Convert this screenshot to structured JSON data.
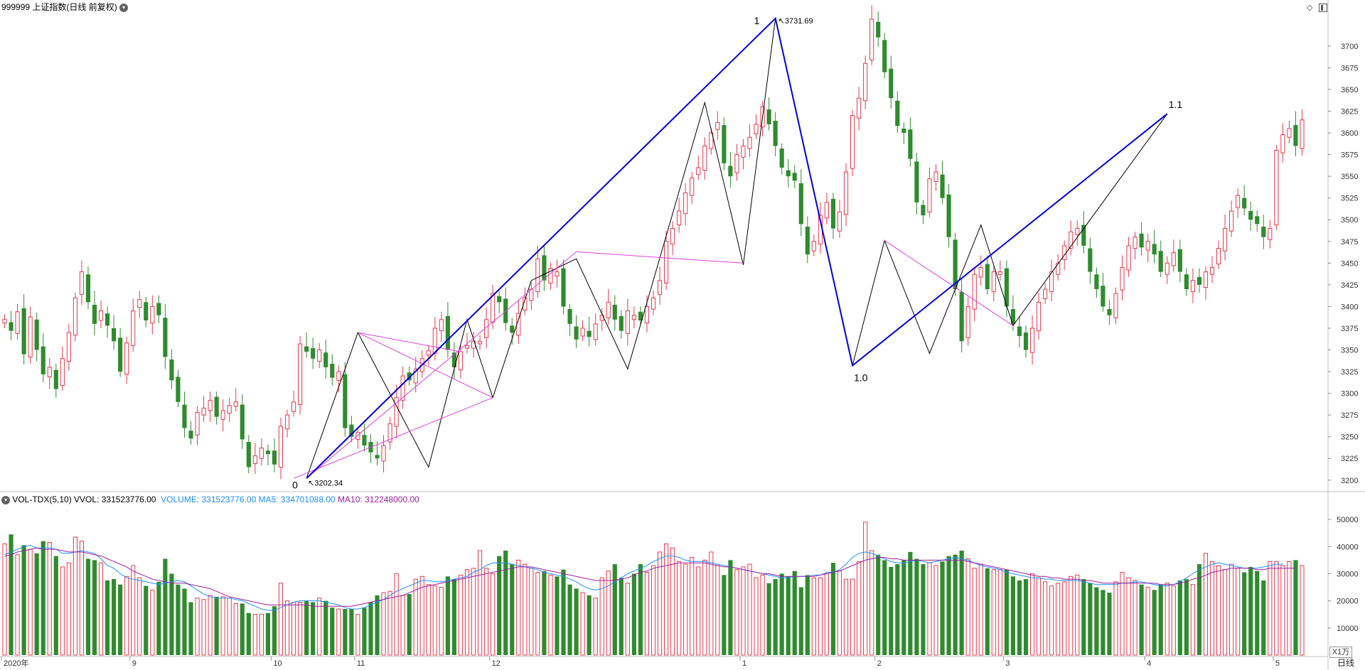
{
  "header": {
    "title": "999999 上证指数(日线 前复权)",
    "dropdown_icon": "chevron-down-icon",
    "right_icons": [
      "diamond-icon",
      "panel-toggle-icon"
    ]
  },
  "volume_header": {
    "indicator": "VOL-TDX(5,10)",
    "vvol": "VVOL: 331523776.00",
    "volume": "VOLUME: 331523776.00",
    "ma5": "MA5: 334701088.00",
    "ma10": "MA10: 312248000.00"
  },
  "price_axis": {
    "ticks": [
      "3200",
      "3225",
      "3250",
      "3275",
      "3300",
      "3325",
      "3350",
      "3375",
      "3400",
      "3425",
      "3450",
      "3475",
      "3500",
      "3525",
      "3550",
      "3575",
      "3600",
      "3625",
      "3650",
      "3675",
      "3700"
    ]
  },
  "volume_axis": {
    "ticks": [
      "10000",
      "20000",
      "30000",
      "40000",
      "50000"
    ],
    "unit": "X1万"
  },
  "time_axis": {
    "labels": [
      "2020年",
      "9",
      "10",
      "11",
      "12",
      "1",
      "2",
      "3",
      "4",
      "5"
    ],
    "period_button": "日线"
  },
  "annotations": {
    "high_label": "3731.69",
    "low_label": "3202.34",
    "wave_labels": [
      "0",
      "1",
      "1.0",
      "1.1"
    ]
  },
  "colors": {
    "up": "#e8384f",
    "down": "#2e8b2e",
    "blue_line": "#0000e0",
    "magenta_line": "#e040e0",
    "vol_ma5": "#1e90ff",
    "vol_ma10": "#a0209e",
    "grid": "#d8d8d8"
  },
  "chart_data": {
    "type": "candlestick",
    "title": "999999 上证指数(日线 前复权)",
    "ylim": [
      3190,
      3740
    ],
    "vol_ylim": [
      0,
      55000
    ],
    "closes": [
      3385,
      3372,
      3394,
      3345,
      3388,
      3350,
      3322,
      3330,
      3305,
      3340,
      3370,
      3410,
      3440,
      3405,
      3380,
      3395,
      3378,
      3360,
      3325,
      3358,
      3395,
      3408,
      3384,
      3400,
      3390,
      3342,
      3315,
      3290,
      3260,
      3248,
      3278,
      3283,
      3292,
      3273,
      3280,
      3286,
      3290,
      3247,
      3215,
      3228,
      3237,
      3230,
      3218,
      3262,
      3275,
      3290,
      3357,
      3348,
      3340,
      3350,
      3330,
      3318,
      3325,
      3260,
      3250,
      3255,
      3240,
      3232,
      3225,
      3240,
      3265,
      3295,
      3320,
      3315,
      3328,
      3340,
      3349,
      3375,
      3385,
      3350,
      3330,
      3348,
      3355,
      3360,
      3360,
      3385,
      3415,
      3405,
      3381,
      3370,
      3392,
      3410,
      3420,
      3455,
      3430,
      3444,
      3440,
      3400,
      3380,
      3362,
      3375,
      3365,
      3380,
      3390,
      3405,
      3385,
      3372,
      3395,
      3390,
      3384,
      3400,
      3410,
      3430,
      3475,
      3490,
      3510,
      3531,
      3548,
      3560,
      3585,
      3600,
      3612,
      3565,
      3550,
      3575,
      3585,
      3595,
      3610,
      3630,
      3610,
      3585,
      3560,
      3550,
      3545,
      3495,
      3460,
      3475,
      3505,
      3520,
      3490,
      3509,
      3555,
      3620,
      3640,
      3680,
      3731,
      3710,
      3670,
      3640,
      3608,
      3600,
      3570,
      3520,
      3505,
      3547,
      3555,
      3525,
      3480,
      3420,
      3360,
      3400,
      3437,
      3445,
      3420,
      3440,
      3440,
      3400,
      3380,
      3366,
      3350,
      3375,
      3405,
      3420,
      3440,
      3450,
      3470,
      3486,
      3490,
      3470,
      3440,
      3420,
      3400,
      3390,
      3415,
      3445,
      3470,
      3480,
      3468,
      3475,
      3460,
      3440,
      3450,
      3462,
      3440,
      3420,
      3430,
      3425,
      3440,
      3445,
      3467,
      3490,
      3510,
      3528,
      3513,
      3500,
      3495,
      3480,
      3490,
      3580,
      3598,
      3605,
      3585,
      3615
    ],
    "volumes": [
      41000,
      44500,
      37000,
      40500,
      39000,
      37500,
      42000,
      41500,
      36500,
      32500,
      34000,
      43500,
      42000,
      35500,
      35000,
      34000,
      27500,
      28000,
      26000,
      29000,
      33000,
      28500,
      25500,
      24000,
      27000,
      35500,
      30000,
      26000,
      24500,
      19500,
      21000,
      20500,
      22000,
      21500,
      21500,
      21000,
      19000,
      19000,
      15500,
      15000,
      15000,
      15500,
      18000,
      26500,
      20000,
      19500,
      19500,
      20000,
      19500,
      21000,
      20000,
      17500,
      17000,
      17000,
      17000,
      15000,
      17500,
      19500,
      22000,
      23000,
      23500,
      30000,
      22000,
      22500,
      28000,
      29000,
      26000,
      25500,
      25000,
      29000,
      28000,
      29500,
      31500,
      32000,
      38500,
      32000,
      30000,
      36500,
      38500,
      33500,
      35000,
      33500,
      32000,
      30500,
      31000,
      29500,
      29000,
      31500,
      26000,
      24500,
      23000,
      22000,
      21000,
      28500,
      31000,
      33500,
      28500,
      26500,
      30000,
      33500,
      30500,
      33000,
      38000,
      41000,
      39500,
      34500,
      33500,
      36000,
      32500,
      35000,
      38000,
      33000,
      29500,
      35000,
      31500,
      32500,
      33500,
      28500,
      29500,
      26500,
      28000,
      30000,
      29000,
      31000,
      25000,
      29500,
      28500,
      28500,
      30000,
      34000,
      31000,
      28000,
      28000,
      34500,
      49000,
      38500,
      37000,
      35000,
      32500,
      33500,
      35000,
      38000,
      35500,
      33500,
      34000,
      33000,
      34500,
      36500,
      37000,
      38500,
      35500,
      32000,
      33500,
      32000,
      31500,
      31500,
      31500,
      29000,
      27500,
      28000,
      30000,
      28500,
      27000,
      25500,
      26500,
      27000,
      29000,
      29500,
      28000,
      26500,
      25000,
      24000,
      23000,
      27000,
      30500,
      28500,
      27500,
      26000,
      25000,
      24000,
      26000,
      26500,
      25500,
      27500,
      28000,
      26000,
      33500,
      37500,
      34500,
      33000,
      31500,
      33500,
      32000,
      30500,
      32500,
      31000,
      27500,
      34500,
      34500,
      33000,
      34500,
      35000,
      33000
    ],
    "ma5": [
      37000,
      38000,
      39000,
      40000,
      40500,
      39500,
      39500,
      39500,
      39000,
      37500,
      37500,
      38000,
      38500,
      38000,
      37500,
      35500,
      33000,
      32000,
      30000,
      28500,
      28000,
      27500,
      27000,
      26500,
      26000,
      26500,
      27000,
      27500,
      27000,
      25500,
      24000,
      22500,
      21500,
      21000,
      21000,
      21000,
      20500,
      20000,
      19000,
      18000,
      17000,
      16500,
      16500,
      17500,
      18500,
      19500,
      20000,
      20000,
      20000,
      20000,
      19500,
      19000,
      18500,
      17500,
      17000,
      17000,
      17500,
      18500,
      19500,
      20500,
      22000,
      23500,
      24500,
      25500,
      26500,
      27500,
      27500,
      27000,
      27000,
      27500,
      28000,
      28500,
      29000,
      30500,
      31500,
      33000,
      34000,
      34000,
      34000,
      33500,
      33000,
      32500,
      32000,
      31500,
      30500,
      30000,
      29500,
      29000,
      28000,
      27000,
      25500,
      24500,
      24000,
      24500,
      25500,
      27000,
      28500,
      30000,
      31000,
      32000,
      33000,
      34500,
      35500,
      36500,
      36500,
      36000,
      35000,
      34500,
      34500,
      34500,
      34000,
      33500,
      33000,
      32500,
      32000,
      31500,
      31000,
      30500,
      30000,
      29500,
      29000,
      28500,
      28500,
      29000,
      29000,
      29000,
      29500,
      29500,
      30500,
      30500,
      31500,
      33500,
      36000,
      37500,
      38000,
      37500,
      36500,
      35500,
      34500,
      34000,
      34000,
      34500,
      35000,
      34500,
      34000,
      34500,
      35000,
      35500,
      36000,
      35500,
      35000,
      34000,
      33000,
      32500,
      32000,
      31500,
      30500,
      30000,
      29500,
      29000,
      28500,
      28500,
      28000,
      28000,
      27500,
      27500,
      27500,
      27500,
      27000,
      26500,
      26000,
      26000,
      26000,
      26000,
      26500,
      26500,
      27000,
      27000,
      26500,
      26000,
      25500,
      25500,
      26000,
      27000,
      28500,
      30000,
      31500,
      32500,
      33500,
      34000,
      33500,
      33000,
      32500,
      32000,
      32000,
      32000,
      32500,
      33000,
      33500,
      33500
    ],
    "ma10": [
      36500,
      37000,
      38000,
      38500,
      39000,
      39500,
      39000,
      39000,
      39000,
      38500,
      38000,
      38000,
      38000,
      37500,
      37000,
      36500,
      35500,
      34500,
      33500,
      32500,
      31000,
      30000,
      29000,
      28000,
      27500,
      27000,
      26500,
      26500,
      26500,
      26000,
      25500,
      25000,
      24500,
      23500,
      22500,
      21500,
      21000,
      20500,
      20000,
      19500,
      19000,
      18500,
      18500,
      18500,
      18500,
      18500,
      18500,
      18500,
      18000,
      18000,
      18000,
      18000,
      18000,
      18000,
      18000,
      18500,
      19000,
      19500,
      20000,
      20500,
      21000,
      21500,
      22000,
      23000,
      24000,
      25000,
      25500,
      26000,
      26500,
      27000,
      27500,
      28000,
      28500,
      29000,
      29500,
      30000,
      30500,
      31000,
      31500,
      32000,
      32500,
      32500,
      32500,
      32000,
      31500,
      31000,
      30500,
      30000,
      29500,
      29000,
      28500,
      28000,
      27500,
      27500,
      27500,
      27500,
      28000,
      28500,
      29500,
      30500,
      31000,
      32000,
      32500,
      33000,
      33500,
      34000,
      34000,
      34000,
      34000,
      34000,
      33500,
      33000,
      32500,
      32500,
      32000,
      31500,
      31000,
      30500,
      30000,
      30000,
      29500,
      29000,
      29000,
      29000,
      29000,
      29000,
      29000,
      29500,
      30000,
      30500,
      31000,
      32000,
      33000,
      34000,
      35000,
      35500,
      36000,
      36000,
      35500,
      35500,
      35000,
      35000,
      35000,
      35000,
      35000,
      35000,
      35000,
      35000,
      35000,
      35000,
      34500,
      34000,
      33500,
      33000,
      32500,
      32000,
      31500,
      31000,
      30500,
      30000,
      29500,
      29000,
      29000,
      28500,
      28500,
      28000,
      28000,
      28000,
      27500,
      27500,
      27000,
      26500,
      26500,
      26500,
      26500,
      26500,
      26500,
      26500,
      26500,
      26500,
      26000,
      26000,
      26000,
      26500,
      27000,
      28000,
      28500,
      29500,
      30500,
      31000,
      31500,
      32000,
      32000,
      32000,
      32000,
      31500,
      31500,
      32000,
      32000,
      32000,
      32000,
      32000
    ]
  }
}
